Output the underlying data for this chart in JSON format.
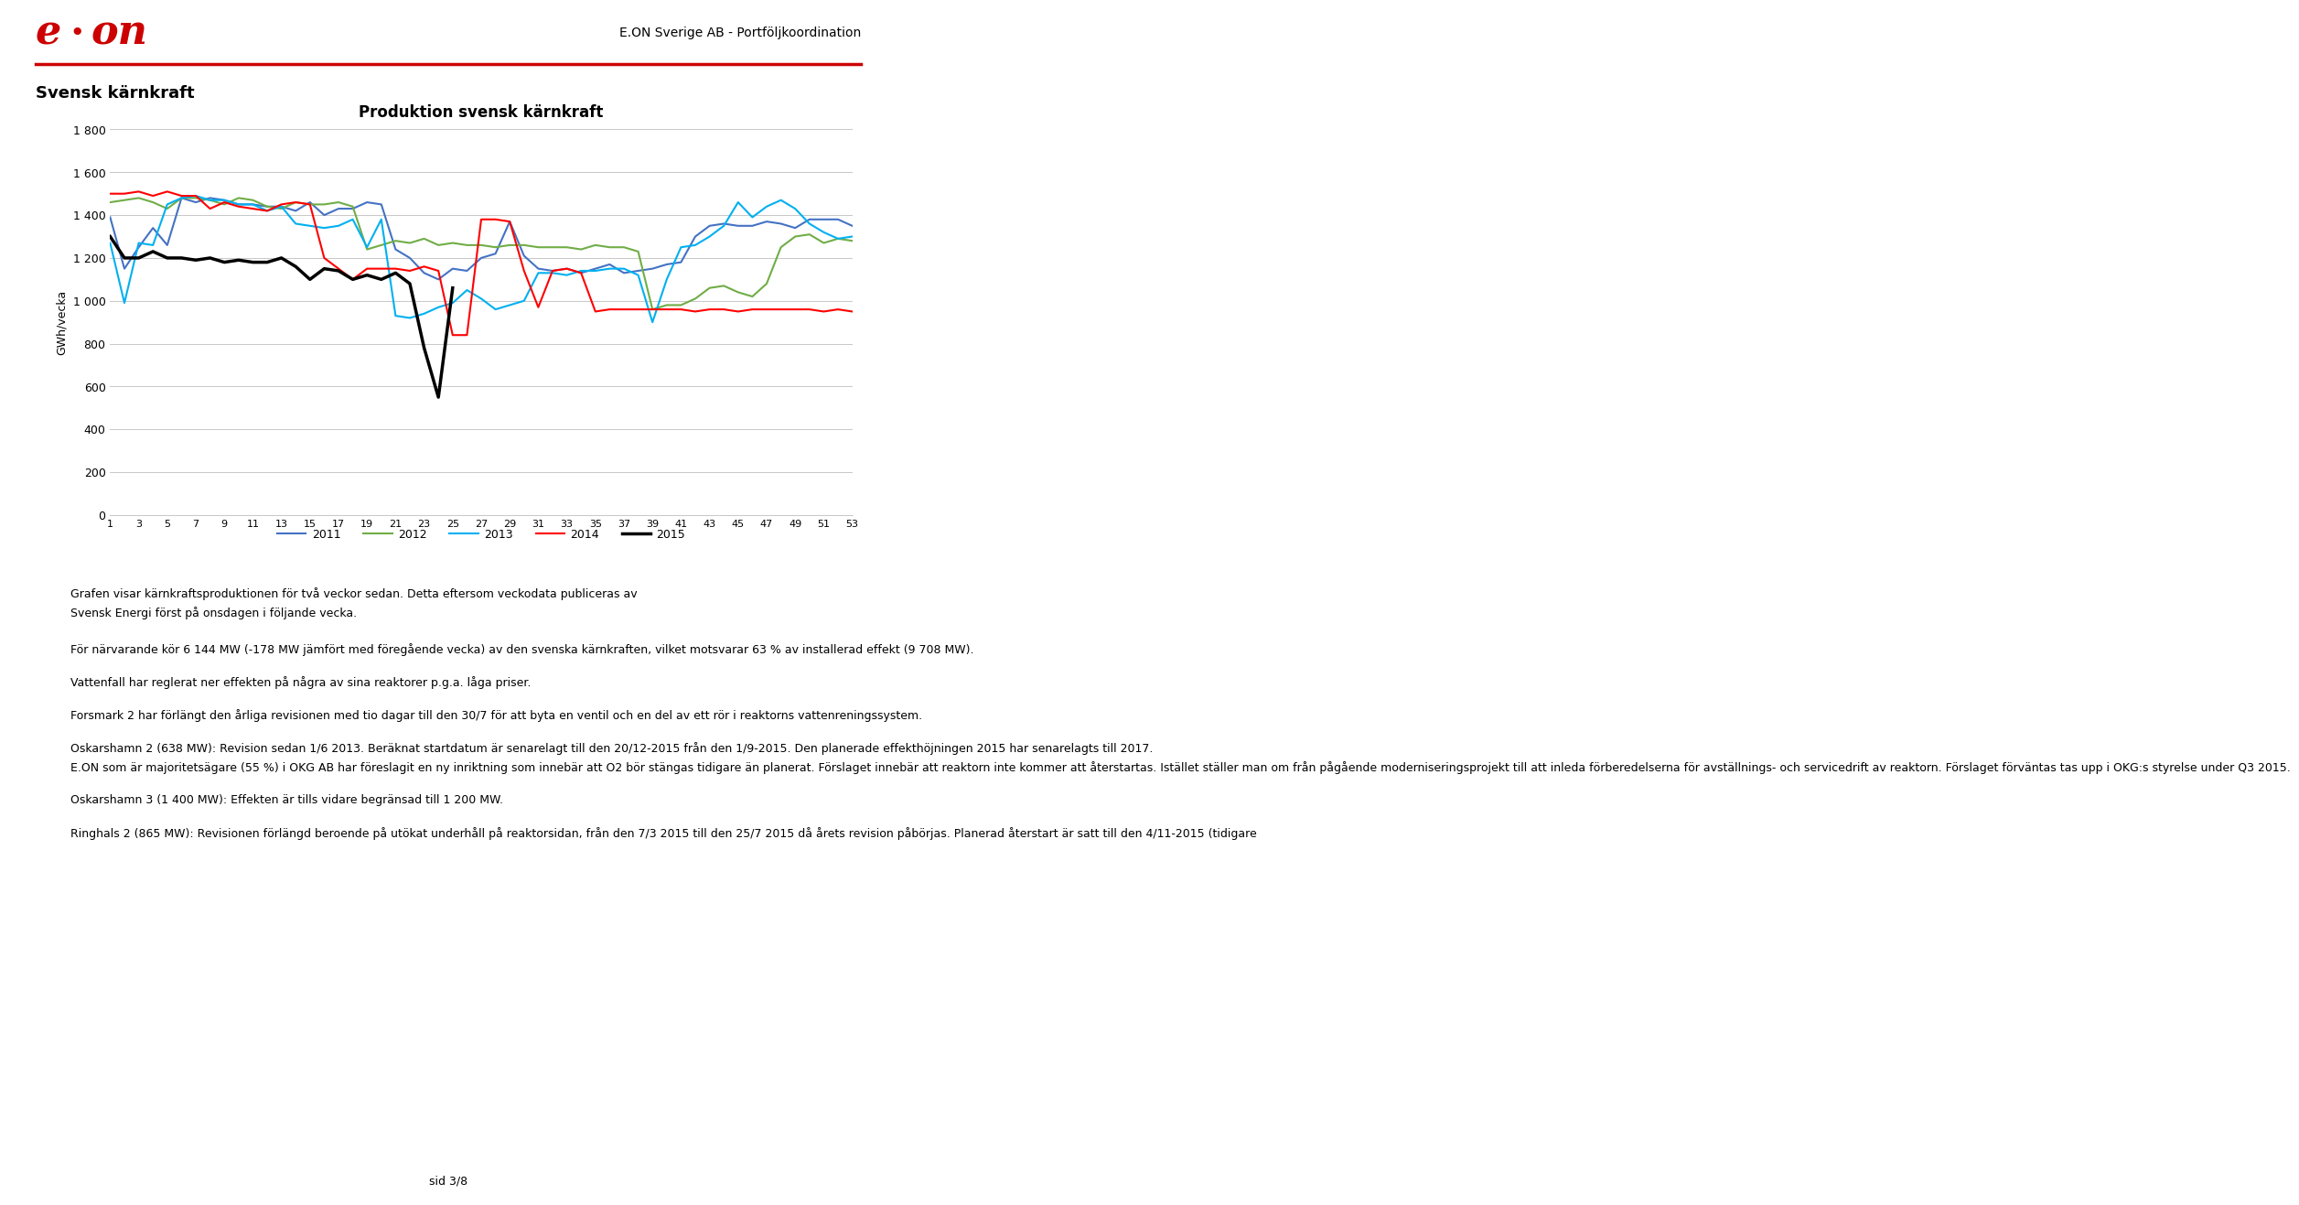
{
  "title": "Produktion svensk kärnkraft",
  "ylabel": "GWh/vecka",
  "header_title": "E.ON Sverige AB - Portföljkoordination",
  "section_title": "Svensk kärnkraft",
  "ylim": [
    0,
    1800
  ],
  "yticks": [
    0,
    200,
    400,
    600,
    800,
    1000,
    1200,
    1400,
    1600,
    1800
  ],
  "xticks": [
    1,
    3,
    5,
    7,
    9,
    11,
    13,
    15,
    17,
    19,
    21,
    23,
    25,
    27,
    29,
    31,
    33,
    35,
    37,
    39,
    41,
    43,
    45,
    47,
    49,
    51,
    53
  ],
  "legend_labels": [
    "2011",
    "2012",
    "2013",
    "2014",
    "2015"
  ],
  "line_colors": [
    "#4472C4",
    "#70AD47",
    "#00B0F0",
    "#FF0000",
    "#000000"
  ],
  "line_widths": [
    1.5,
    1.5,
    1.5,
    1.5,
    2.5
  ],
  "body_text_intro": [
    "Grafen visar kärnkraftsproduktionen för två veckor sedan. Detta eftersom veckodata publiceras av",
    "Svensk Energi först på onsdagen i följande vecka."
  ],
  "body_paragraphs": [
    "För närvarande kör 6 144 MW (-178 MW jämfört med föregående vecka) av den svenska kärnkraften, vilket motsvarar 63 % av installerad effekt (9 708 MW).",
    "Vattenfall har reglerat ner effekten på några av sina reaktorer p.g.a. låga priser.",
    "Forsmark 2 har förlängt den årliga revisionen med tio dagar till den 30/7 för att byta en ventil och en del av ett rör i reaktorns vattenreningssystem.",
    "Oskarshamn 2 (638 MW): Revision sedan 1/6 2013. Beräknat startdatum är senarelagt till den 20/12-2015 från den 1/9-2015. Den planerade effekthöjningen 2015 har senarelagts till 2017.\nE.ON som är majoritetsägare (55 %) i OKG AB har föreslagit en ny inriktning som innebär att O2 bör stängas tidigare än planerat. Förslaget innebär att reaktorn inte kommer att återstartas. Istället ställer man om från pågående moderniseringsprojekt till att inleda förberedelserna för avställnings- och servicedrift av reaktorn. Förslaget förväntas tas upp i OKG:s styrelse under Q3 2015.",
    "Oskarshamn 3 (1 400 MW): Effekten är tills vidare begränsad till 1 200 MW.",
    "Ringhals 2 (865 MW): Revisionen förlängd beroende på utökat underhåll på reaktorsidan, från den 7/3 2015 till den 25/7 2015 då årets revision påbörjas. Planerad återstart är satt till den 4/11-2015 (tidigare"
  ],
  "footer_text": "sid 3/8",
  "series_2011": [
    1390,
    1150,
    1250,
    1340,
    1260,
    1480,
    1460,
    1480,
    1470,
    1450,
    1450,
    1440,
    1440,
    1420,
    1460,
    1400,
    1430,
    1430,
    1460,
    1450,
    1240,
    1200,
    1130,
    1100,
    1150,
    1140,
    1200,
    1220,
    1370,
    1210,
    1150,
    1140,
    1150,
    1130,
    1150,
    1170,
    1130,
    1140,
    1150,
    1170,
    1180,
    1300,
    1350,
    1360,
    1350,
    1350,
    1370,
    1360,
    1340,
    1380,
    1380,
    1380,
    1350
  ],
  "series_2012": [
    1460,
    1470,
    1480,
    1460,
    1430,
    1480,
    1480,
    1470,
    1450,
    1480,
    1470,
    1440,
    1430,
    1460,
    1450,
    1450,
    1460,
    1440,
    1240,
    1260,
    1280,
    1270,
    1290,
    1260,
    1270,
    1260,
    1260,
    1250,
    1260,
    1260,
    1250,
    1250,
    1250,
    1240,
    1260,
    1250,
    1250,
    1230,
    960,
    980,
    980,
    1010,
    1060,
    1070,
    1040,
    1020,
    1080,
    1250,
    1300,
    1310,
    1270,
    1290,
    1280
  ],
  "series_2013": [
    1270,
    990,
    1270,
    1260,
    1450,
    1480,
    1490,
    1470,
    1470,
    1450,
    1450,
    1420,
    1440,
    1360,
    1350,
    1340,
    1350,
    1380,
    1250,
    1380,
    930,
    920,
    940,
    970,
    990,
    1050,
    1010,
    960,
    980,
    1000,
    1130,
    1130,
    1120,
    1140,
    1140,
    1150,
    1150,
    1120,
    900,
    1100,
    1250,
    1260,
    1300,
    1350,
    1460,
    1390,
    1440,
    1470,
    1430,
    1360,
    1320,
    1290,
    1300
  ],
  "series_2014": [
    1500,
    1500,
    1510,
    1490,
    1510,
    1490,
    1490,
    1430,
    1460,
    1440,
    1430,
    1420,
    1450,
    1460,
    1450,
    1200,
    1150,
    1100,
    1150,
    1150,
    1150,
    1140,
    1160,
    1140,
    840,
    840,
    1380,
    1380,
    1370,
    1140,
    970,
    1140,
    1150,
    1130,
    950,
    960,
    960,
    960,
    960,
    960,
    960,
    950,
    960,
    960,
    950,
    960,
    960,
    960,
    960,
    960,
    950,
    960,
    950
  ],
  "series_2015": [
    1300,
    1200,
    1200,
    1230,
    1200,
    1200,
    1190,
    1200,
    1180,
    1190,
    1180,
    1180,
    1200,
    1160,
    1100,
    1150,
    1140,
    1100,
    1120,
    1100,
    1130,
    1080,
    780,
    550,
    1060,
    null,
    null,
    null,
    null,
    null,
    null,
    null,
    null,
    null,
    null,
    null,
    null,
    null,
    null,
    null,
    null,
    null,
    null,
    null,
    null,
    null,
    null,
    null,
    null,
    null,
    null,
    null,
    null
  ]
}
